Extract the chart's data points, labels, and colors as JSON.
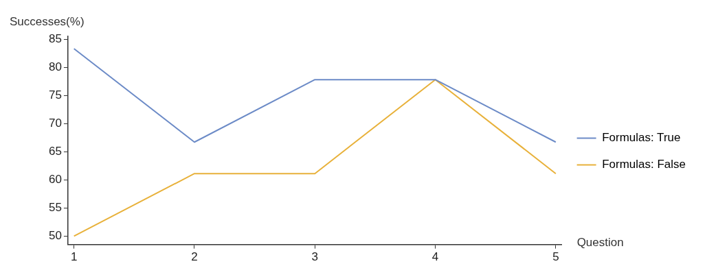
{
  "chart_data": {
    "type": "line",
    "xlabel": "Question",
    "ylabel": "Successes(%)",
    "x": [
      1,
      2,
      3,
      4,
      5
    ],
    "series": [
      {
        "name": "Formulas: True",
        "color": "#6c8bc7",
        "values": [
          83.3,
          66.7,
          77.8,
          77.8,
          66.7
        ]
      },
      {
        "name": "Formulas: False",
        "color": "#e8b13a",
        "values": [
          50,
          61.1,
          61.1,
          77.8,
          61.1
        ]
      }
    ],
    "xlim": [
      0.95,
      5.05
    ],
    "xticks": [
      1,
      2,
      3,
      4,
      5
    ],
    "ylim": [
      48.5,
      85.5
    ],
    "yticks": [
      50,
      55,
      60,
      65,
      70,
      75,
      80,
      85
    ],
    "grid": false,
    "legend": "right",
    "marker": "none",
    "line_style": "solid"
  }
}
